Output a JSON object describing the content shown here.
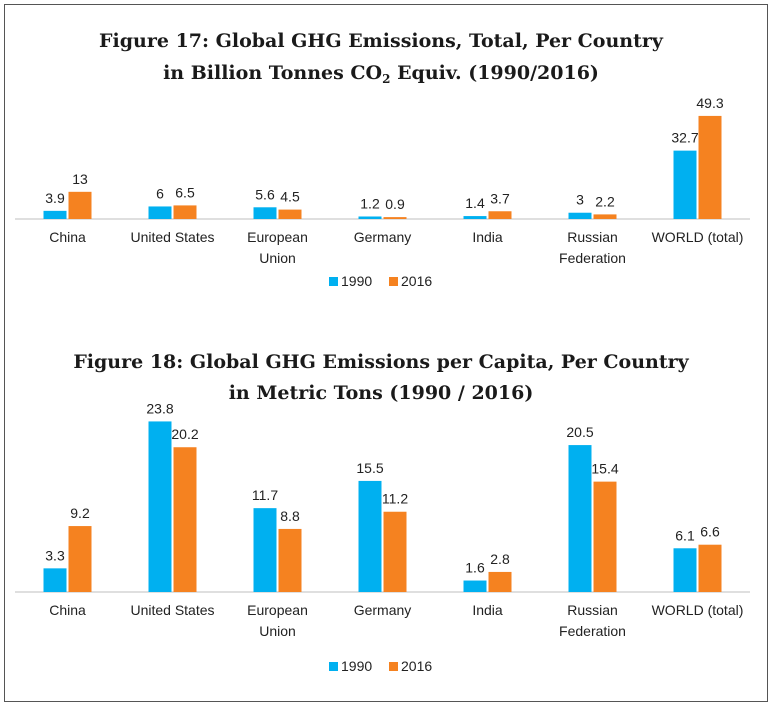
{
  "chart_data": [
    {
      "type": "bar",
      "title_line1": "Figure 17: Global GHG Emissions, Total, Per Country",
      "title_line2_pre": "in Billion Tonnes CO",
      "title_line2_sub": "2",
      "title_line2_post": " Equiv. (1990/2016)",
      "categories": [
        "China",
        "United States",
        "European Union",
        "Germany",
        "India",
        "Russian Federation",
        "WORLD (total)"
      ],
      "category_lines": [
        [
          "China"
        ],
        [
          "United States"
        ],
        [
          "European",
          "Union"
        ],
        [
          "Germany"
        ],
        [
          "India"
        ],
        [
          "Russian",
          "Federation"
        ],
        [
          "WORLD (total)"
        ]
      ],
      "series": [
        {
          "name": "1990",
          "color": "#00b0f0",
          "values": [
            3.9,
            6,
            5.6,
            1.2,
            1.4,
            3,
            32.7
          ],
          "labels": [
            "3.9",
            "6",
            "5.6",
            "1.2",
            "1.4",
            "3",
            "32.7"
          ]
        },
        {
          "name": "2016",
          "color": "#f58220",
          "values": [
            13,
            6.5,
            4.5,
            0.9,
            3.7,
            2.2,
            49.3
          ],
          "labels": [
            "13",
            "6.5",
            "4.5",
            "0.9",
            "3.7",
            "2.2",
            "49.3"
          ]
        }
      ],
      "ylim": [
        0,
        55
      ],
      "grid": false,
      "legend": "bottom"
    },
    {
      "type": "bar",
      "title_line1": "Figure 18: Global GHG Emissions per Capita, Per Country",
      "title_line2": "in Metric Tons (1990 / 2016)",
      "categories": [
        "China",
        "United States",
        "European Union",
        "Germany",
        "India",
        "Russian Federation",
        "WORLD (total)"
      ],
      "category_lines": [
        [
          "China"
        ],
        [
          "United States"
        ],
        [
          "European",
          "Union"
        ],
        [
          "Germany"
        ],
        [
          "India"
        ],
        [
          "Russian",
          "Federation"
        ],
        [
          "WORLD (total)"
        ]
      ],
      "series": [
        {
          "name": "1990",
          "color": "#00b0f0",
          "values": [
            3.3,
            23.8,
            11.7,
            15.5,
            1.6,
            20.5,
            6.1
          ],
          "labels": [
            "3.3",
            "23.8",
            "11.7",
            "15.5",
            "1.6",
            "20.5",
            "6.1"
          ]
        },
        {
          "name": "2016",
          "color": "#f58220",
          "values": [
            9.2,
            20.2,
            8.8,
            11.2,
            2.8,
            15.4,
            6.6
          ],
          "labels": [
            "9.2",
            "20.2",
            "8.8",
            "11.2",
            "2.8",
            "15.4",
            "6.6"
          ]
        }
      ],
      "ylim": [
        0,
        24
      ],
      "grid": false,
      "legend": "bottom"
    }
  ]
}
